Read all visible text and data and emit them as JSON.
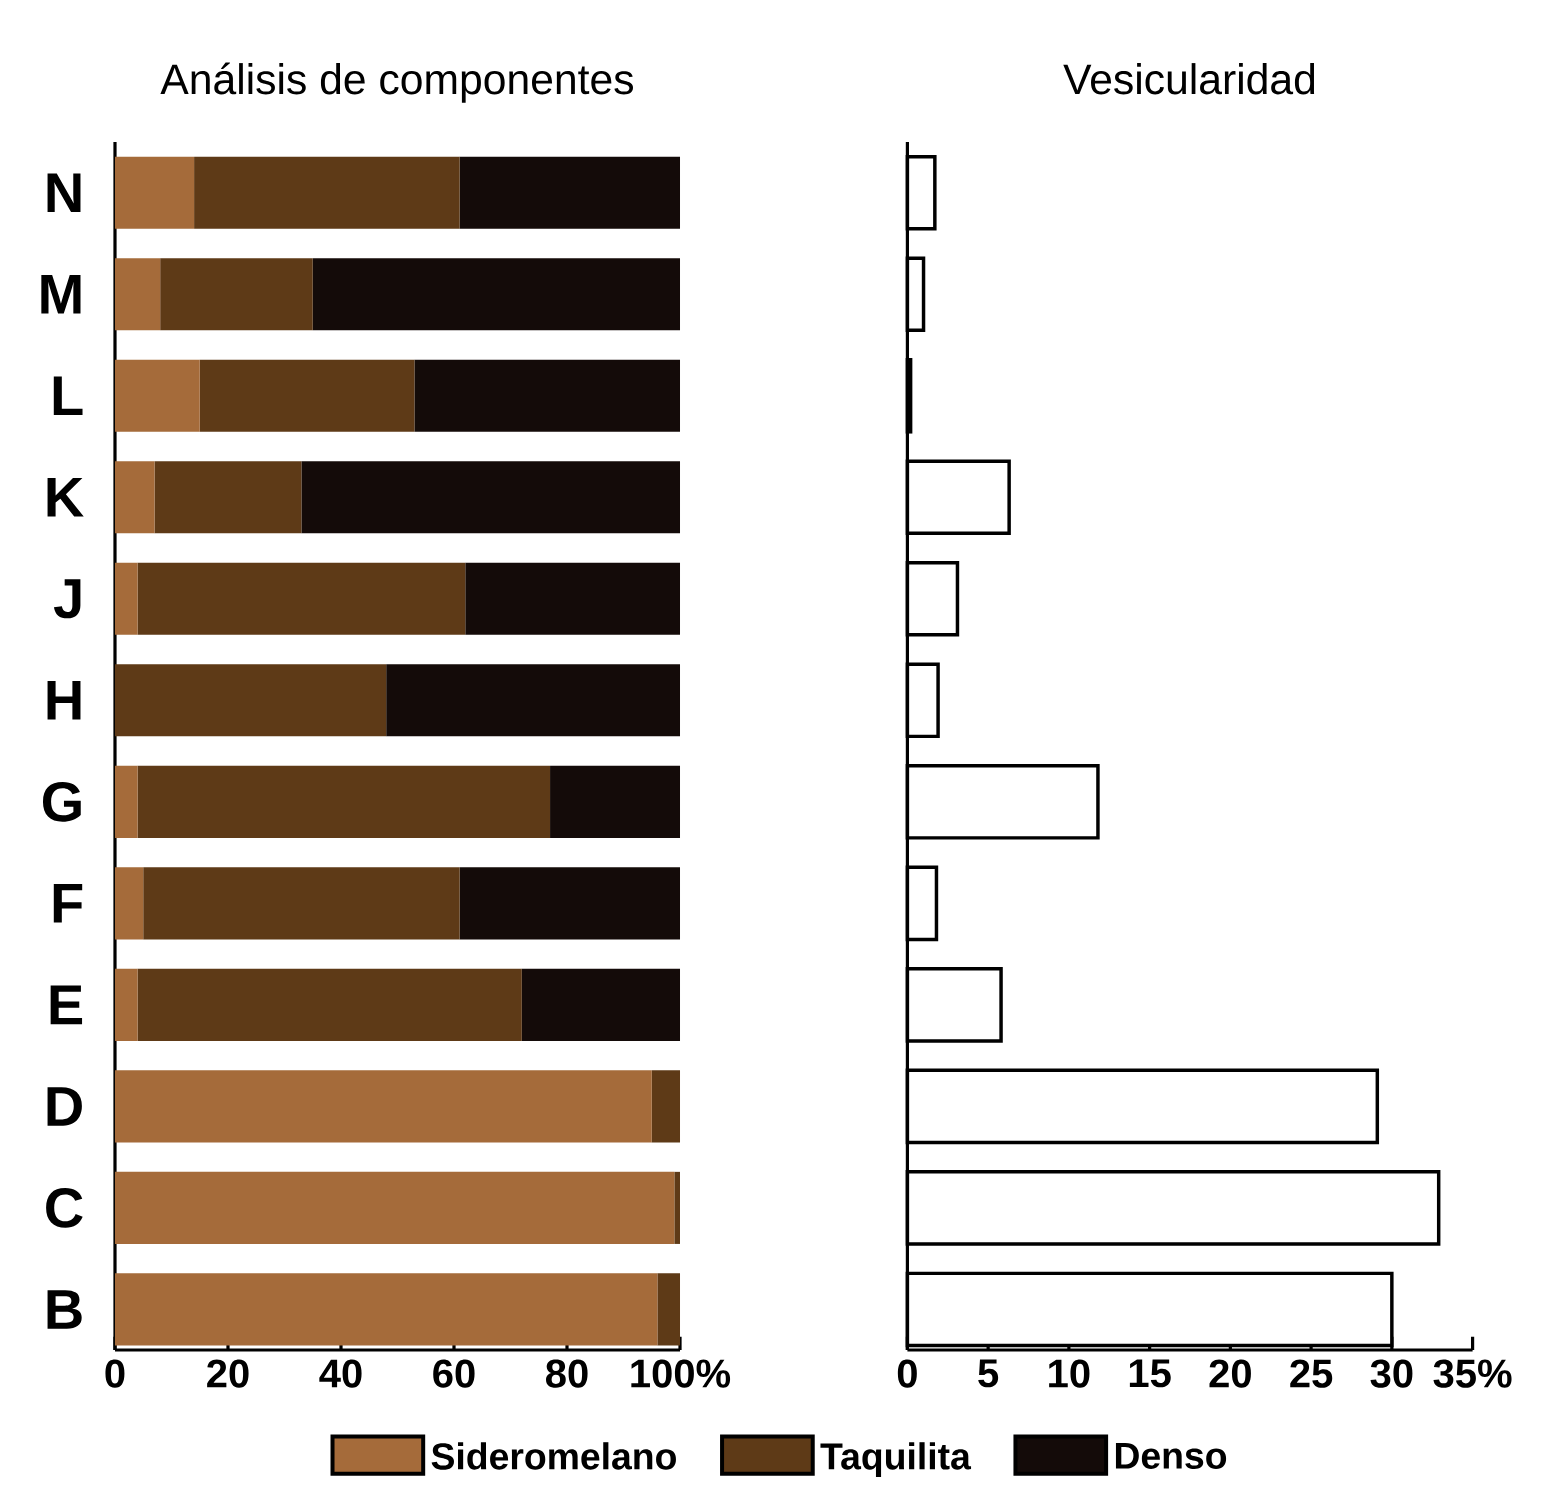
{
  "chart_data": [
    {
      "type": "bar",
      "orientation": "horizontal",
      "stacked": true,
      "title": "Análisis de componentes",
      "categories": [
        "N",
        "M",
        "L",
        "K",
        "J",
        "H",
        "G",
        "F",
        "E",
        "D",
        "C",
        "B"
      ],
      "series": [
        {
          "name": "Sideromelano",
          "color": "#a56b3a",
          "values": [
            14,
            8,
            15,
            7,
            4,
            0,
            4,
            5,
            4,
            95,
            99,
            96
          ]
        },
        {
          "name": "Taquilita",
          "color": "#5e3a17",
          "values": [
            47,
            27,
            38,
            26,
            58,
            48,
            73,
            56,
            68,
            5,
            1,
            4
          ]
        },
        {
          "name": "Denso",
          "color": "#140b09",
          "values": [
            39,
            65,
            47,
            67,
            38,
            52,
            23,
            39,
            28,
            0,
            0,
            0
          ]
        }
      ],
      "xlim": [
        0,
        100
      ],
      "xticks": [
        0,
        20,
        40,
        60,
        80,
        {
          "value": 100,
          "label": "100%"
        }
      ],
      "legend": "bottom"
    },
    {
      "type": "bar",
      "orientation": "horizontal",
      "title": "Vesicularidad",
      "categories": [
        null,
        null,
        null,
        null,
        null,
        null,
        null,
        null,
        null,
        null,
        null,
        null
      ],
      "values": [
        1.7,
        1.0,
        0.2,
        6.3,
        3.1,
        1.9,
        11.8,
        1.8,
        5.8,
        29.1,
        32.9,
        30.0
      ],
      "color": "#ffffff",
      "xlim": [
        0,
        35
      ],
      "xticks": [
        0,
        5,
        10,
        15,
        20,
        25,
        30,
        {
          "value": 35,
          "label": "35%"
        }
      ]
    }
  ]
}
